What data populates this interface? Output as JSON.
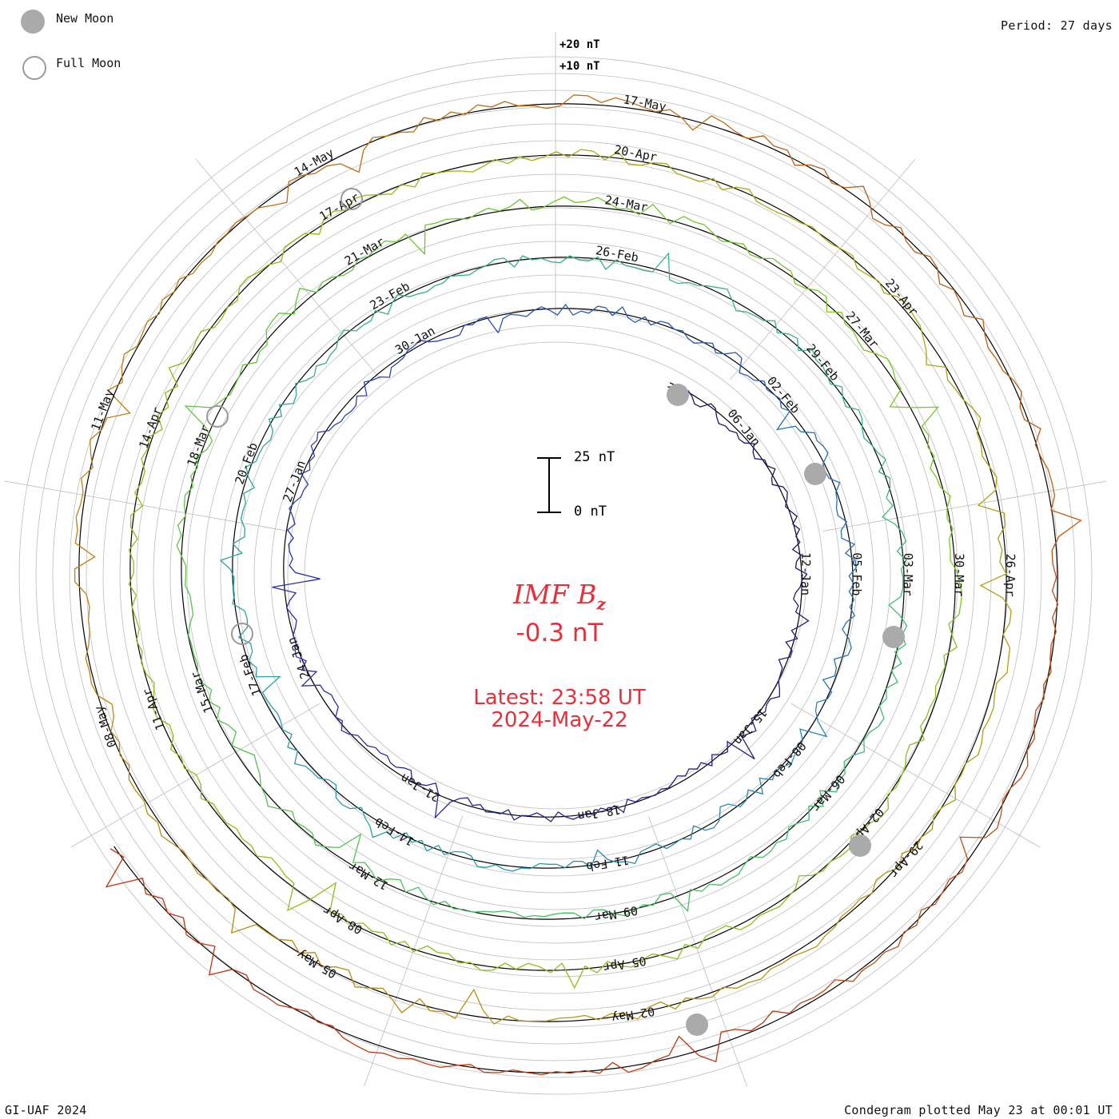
{
  "legend": {
    "new_moon_label": "New Moon",
    "full_moon_label": "Full Moon"
  },
  "header": {
    "period": "Period: 27 days"
  },
  "footer": {
    "left": "GI-UAF 2024",
    "right": "Condegram plotted May 23 at 00:01 UT"
  },
  "center": {
    "title_main": "IMF B",
    "title_sub": "z",
    "current_value": "-0.3 nT",
    "latest_time": "Latest: 23:58 UT",
    "latest_date": "2024-May-22"
  },
  "scale_bar": {
    "top_label": "25 nT",
    "bottom_label": "0 nT"
  },
  "ref_labels": [
    "+20 nT",
    "+10 nT"
  ],
  "colors": {
    "title_red": "#e8303a",
    "grid": "#bdbdbd",
    "moon": "#aaaaaa",
    "rotations": [
      "#1c0a4a",
      "#2a2fb8",
      "#2a9ab0",
      "#3fbf70",
      "#7cc820",
      "#a8b010",
      "#c08010",
      "#c03010"
    ]
  },
  "chart_data": {
    "type": "line",
    "subtype": "condegram (spiral time series)",
    "quantity": "IMF Bz",
    "units": "nT",
    "period_days": 27,
    "title": "IMF Bz",
    "latest_value_nT": -0.3,
    "latest_time": "23:58 UT",
    "latest_date": "2024-May-22",
    "scale_nT": [
      0,
      25
    ],
    "reference_levels_nT": [
      10,
      20
    ],
    "rotations": [
      {
        "start": "Jan",
        "date_labels": [
          "06-Jan",
          "12-Jan",
          "15-Jan",
          "18-Jan",
          "21-Jan",
          "24-Jan",
          "27-Jan",
          "30-Jan"
        ]
      },
      {
        "start": "02-Feb",
        "date_labels": [
          "02-Feb",
          "05-Feb",
          "08-Feb",
          "11-Feb",
          "14-Feb",
          "17-Feb",
          "20-Feb",
          "23-Feb",
          "26-Feb"
        ]
      },
      {
        "start": "29-Feb",
        "date_labels": [
          "29-Feb",
          "03-Mar",
          "06-Mar",
          "09-Mar",
          "12-Mar",
          "15-Mar",
          "18-Mar",
          "21-Mar",
          "24-Mar"
        ]
      },
      {
        "start": "27-Mar",
        "date_labels": [
          "27-Mar",
          "30-Mar",
          "02-Apr",
          "05-Apr",
          "08-Apr",
          "11-Apr",
          "14-Apr",
          "17-Apr",
          "20-Apr"
        ]
      },
      {
        "start": "23-Apr",
        "date_labels": [
          "23-Apr",
          "26-Apr",
          "29-Apr",
          "02-May",
          "05-May",
          "08-May",
          "11-May",
          "14-May",
          "17-May"
        ]
      }
    ],
    "grid": true
  }
}
